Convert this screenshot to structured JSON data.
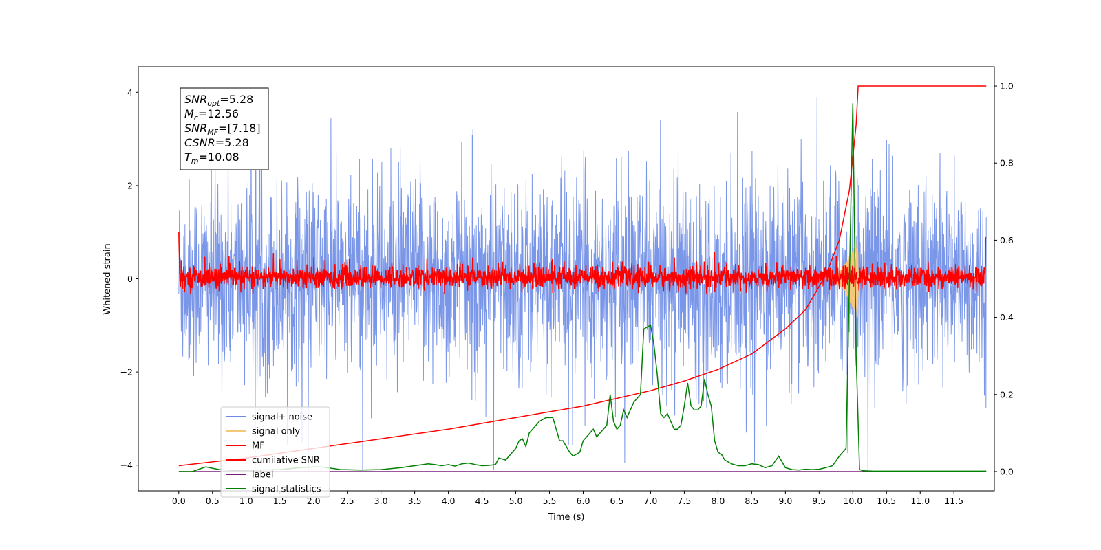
{
  "chart_data": {
    "type": "line",
    "xlabel": "Time (s)",
    "ylabel": "Whitened strain",
    "xlim": [
      -0.6,
      12.1
    ],
    "ylim": [
      -4.55,
      4.55
    ],
    "y2lim": [
      -0.05,
      1.05
    ],
    "xticks": [
      "0.0",
      "0.5",
      "1.0",
      "1.5",
      "2.0",
      "2.5",
      "3.0",
      "3.5",
      "4.0",
      "4.5",
      "5.0",
      "5.5",
      "6.0",
      "6.5",
      "7.0",
      "7.5",
      "8.0",
      "8.5",
      "9.0",
      "9.5",
      "10.0",
      "10.5",
      "11.0",
      "11.5"
    ],
    "xtick_values": [
      0,
      0.5,
      1,
      1.5,
      2,
      2.5,
      3,
      3.5,
      4,
      4.5,
      5,
      5.5,
      6,
      6.5,
      7,
      7.5,
      8,
      8.5,
      9,
      9.5,
      10,
      10.5,
      11,
      11.5
    ],
    "yticks": [
      "−4",
      "−2",
      "0",
      "2",
      "4"
    ],
    "ytick_values": [
      -4,
      -2,
      0,
      2,
      4
    ],
    "y2ticks": [
      "0.0",
      "0.2",
      "0.4",
      "0.6",
      "0.8",
      "1.0"
    ],
    "y2tick_values": [
      0,
      0.2,
      0.4,
      0.6,
      0.8,
      1.0
    ],
    "annotation": {
      "lines": [
        {
          "var": "SNR",
          "sub": "opt",
          "value": "=5.28"
        },
        {
          "var": "M",
          "sub": "c",
          "value": "=12.56"
        },
        {
          "var": "SNR",
          "sub": "MF",
          "value": "=[7.18]"
        },
        {
          "var": "CSNR",
          "sub": "",
          "value": "=5.28"
        },
        {
          "var": "T",
          "sub": "m",
          "value": "=10.08"
        }
      ]
    },
    "legend": {
      "position": "lower-left",
      "entries": [
        {
          "name": "signal+ noise",
          "color": "#6b8be6"
        },
        {
          "name": "signal only",
          "color": "#f5c77a"
        },
        {
          "name": "MF",
          "color": "#ff0000"
        },
        {
          "name": "cumilative SNR",
          "color": "#ff0000"
        },
        {
          "name": "label",
          "color": "#7b1f7b"
        },
        {
          "name": "signal statistics",
          "color": "#008000"
        }
      ]
    },
    "series": [
      {
        "name": "signal+ noise",
        "axis": "left",
        "color": "#6b8be6",
        "kind": "noise",
        "range": [
          0,
          11.98
        ],
        "amplitude_sigma": 1.05
      },
      {
        "name": "signal only",
        "axis": "left",
        "color": "#f5c77a",
        "kind": "chirp",
        "range": [
          9.6,
          10.08
        ],
        "peak": 0.9
      },
      {
        "name": "MF",
        "axis": "left",
        "color": "#ff0000",
        "kind": "noise-small",
        "range": [
          0,
          11.98
        ],
        "amplitude_sigma": 0.12
      },
      {
        "name": "cumilative SNR",
        "axis": "right",
        "color": "#ff0000",
        "x": [
          0,
          1,
          2,
          3,
          4,
          5,
          6,
          7,
          7.5,
          8,
          8.5,
          9,
          9.3,
          9.6,
          9.8,
          9.95,
          10.05,
          10.08,
          10.5,
          11,
          11.98
        ],
        "values": [
          0.015,
          0.035,
          0.06,
          0.085,
          0.11,
          0.14,
          0.17,
          0.21,
          0.235,
          0.265,
          0.305,
          0.37,
          0.42,
          0.51,
          0.6,
          0.73,
          0.9,
          1.0,
          1.0,
          1.0,
          1.0
        ]
      },
      {
        "name": "label",
        "axis": "right",
        "color": "#7b1f7b",
        "x": [
          0,
          11.98
        ],
        "values": [
          0.0,
          0.0
        ]
      },
      {
        "name": "signal statistics",
        "axis": "right",
        "color": "#008000",
        "x": [
          0,
          0.2,
          0.4,
          0.6,
          0.8,
          1.0,
          1.2,
          1.5,
          1.8,
          2.0,
          2.1,
          2.2,
          2.4,
          2.7,
          3.0,
          3.3,
          3.5,
          3.7,
          3.8,
          3.9,
          4.0,
          4.1,
          4.2,
          4.3,
          4.4,
          4.5,
          4.6,
          4.7,
          4.75,
          4.85,
          4.95,
          5.0,
          5.05,
          5.1,
          5.15,
          5.2,
          5.25,
          5.35,
          5.45,
          5.55,
          5.6,
          5.65,
          5.7,
          5.8,
          5.85,
          5.95,
          6.0,
          6.05,
          6.1,
          6.15,
          6.2,
          6.3,
          6.35,
          6.4,
          6.45,
          6.5,
          6.55,
          6.6,
          6.65,
          6.7,
          6.75,
          6.8,
          6.85,
          6.9,
          6.95,
          7.0,
          7.05,
          7.1,
          7.15,
          7.2,
          7.25,
          7.3,
          7.35,
          7.4,
          7.45,
          7.5,
          7.55,
          7.6,
          7.65,
          7.7,
          7.75,
          7.8,
          7.85,
          7.9,
          7.95,
          8.0,
          8.05,
          8.1,
          8.2,
          8.3,
          8.4,
          8.5,
          8.6,
          8.7,
          8.8,
          8.9,
          9.0,
          9.1,
          9.2,
          9.3,
          9.4,
          9.5,
          9.6,
          9.7,
          9.8,
          9.9,
          9.95,
          10.0,
          10.05,
          10.1,
          10.15,
          10.3,
          10.6,
          11.0,
          11.5,
          11.98
        ],
        "values": [
          0.0,
          0.0,
          0.012,
          0.005,
          0.003,
          0.003,
          0.004,
          0.005,
          0.01,
          0.012,
          0.012,
          0.01,
          0.005,
          0.004,
          0.005,
          0.01,
          0.015,
          0.02,
          0.018,
          0.015,
          0.018,
          0.014,
          0.02,
          0.022,
          0.018,
          0.015,
          0.016,
          0.018,
          0.035,
          0.03,
          0.05,
          0.06,
          0.08,
          0.085,
          0.065,
          0.1,
          0.11,
          0.13,
          0.14,
          0.14,
          0.11,
          0.08,
          0.08,
          0.05,
          0.04,
          0.05,
          0.08,
          0.09,
          0.1,
          0.11,
          0.09,
          0.11,
          0.12,
          0.2,
          0.13,
          0.11,
          0.12,
          0.16,
          0.14,
          0.16,
          0.18,
          0.19,
          0.2,
          0.37,
          0.375,
          0.38,
          0.33,
          0.25,
          0.15,
          0.14,
          0.15,
          0.13,
          0.11,
          0.11,
          0.12,
          0.17,
          0.23,
          0.17,
          0.16,
          0.16,
          0.17,
          0.24,
          0.2,
          0.17,
          0.08,
          0.05,
          0.045,
          0.03,
          0.02,
          0.015,
          0.015,
          0.02,
          0.018,
          0.01,
          0.015,
          0.04,
          0.01,
          0.005,
          0.004,
          0.006,
          0.005,
          0.006,
          0.01,
          0.015,
          0.04,
          0.06,
          0.5,
          0.955,
          0.3,
          0.005,
          0.002,
          0.001,
          0.001,
          0.001,
          0.001,
          0.001
        ]
      }
    ]
  }
}
